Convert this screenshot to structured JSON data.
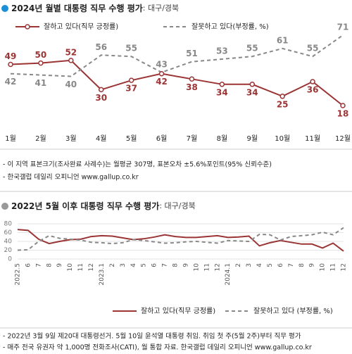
{
  "chart_data": [
    {
      "type": "line",
      "title": "2024년 월별 대통령 직무 수행 평가",
      "subtitle": ": 대구/경북",
      "categories": [
        "1월",
        "2월",
        "3월",
        "4월",
        "5월",
        "6월",
        "7월",
        "8월",
        "9월",
        "10월",
        "11월",
        "12월"
      ],
      "series": [
        {
          "name": "잘하고 있다(직무 긍정률)",
          "color": "#9b3434",
          "values": [
            49,
            50,
            52,
            30,
            37,
            42,
            38,
            34,
            34,
            25,
            36,
            18
          ]
        },
        {
          "name": "잘못하고 있다(부정률, %)",
          "color": "#888888",
          "values": [
            42,
            41,
            40,
            56,
            55,
            43,
            51,
            53,
            55,
            61,
            55,
            71
          ]
        }
      ],
      "notes": [
        "- 이 지역 표본크기(조사완료 사례수)는 월평균 307명, 표본오차 ±5.6%포인트(95% 신뢰수준)",
        "- 한국갤럽 데일리 오피니언 www.gallup.co.kr"
      ]
    },
    {
      "type": "line",
      "title": "2022년 5월 이후 대통령 직무 수행 평가",
      "subtitle": ": 대구/경북",
      "categories": [
        "2022.5",
        "6",
        "7",
        "8",
        "9",
        "10",
        "11",
        "12",
        "2023.1",
        "2",
        "3",
        "4",
        "5",
        "6",
        "7",
        "8",
        "9",
        "10",
        "11",
        "12",
        "2024.1",
        "2",
        "3",
        "4",
        "5",
        "6",
        "7",
        "8",
        "9",
        "10",
        "11",
        "12"
      ],
      "series": [
        {
          "name": "잘하고 있다(직무 긍정률)",
          "color": "#9b3434",
          "values": [
            67,
            65,
            45,
            35,
            40,
            44,
            45,
            51,
            53,
            52,
            48,
            44,
            46,
            50,
            55,
            51,
            49,
            49,
            51,
            53,
            49,
            50,
            52,
            30,
            37,
            42,
            38,
            34,
            34,
            25,
            36,
            18
          ]
        },
        {
          "name": "잘못하고 있다 (부정률, %)",
          "color": "#888888",
          "values": [
            20,
            21,
            40,
            53,
            47,
            45,
            43,
            38,
            37,
            35,
            37,
            44,
            42,
            39,
            36,
            37,
            39,
            40,
            38,
            36,
            42,
            41,
            40,
            56,
            55,
            43,
            51,
            53,
            55,
            61,
            55,
            71
          ]
        }
      ],
      "ylim": [
        0,
        80
      ],
      "yticks": [
        0,
        20,
        40,
        60,
        80
      ],
      "grid": true,
      "notes": [
        "- 2022년 3월 9일 제20대 대통령선거. 5월 10일 윤석열 대통령 취임. 취임 첫 주(5월 2주)부터 직무 평가",
        "- 매주 전국 유권자 약 1,000명 전화조사(CATI), 월 통합 자료. 한국갤럽 데일리 오피니언 www.gallup.co.kr"
      ]
    }
  ]
}
